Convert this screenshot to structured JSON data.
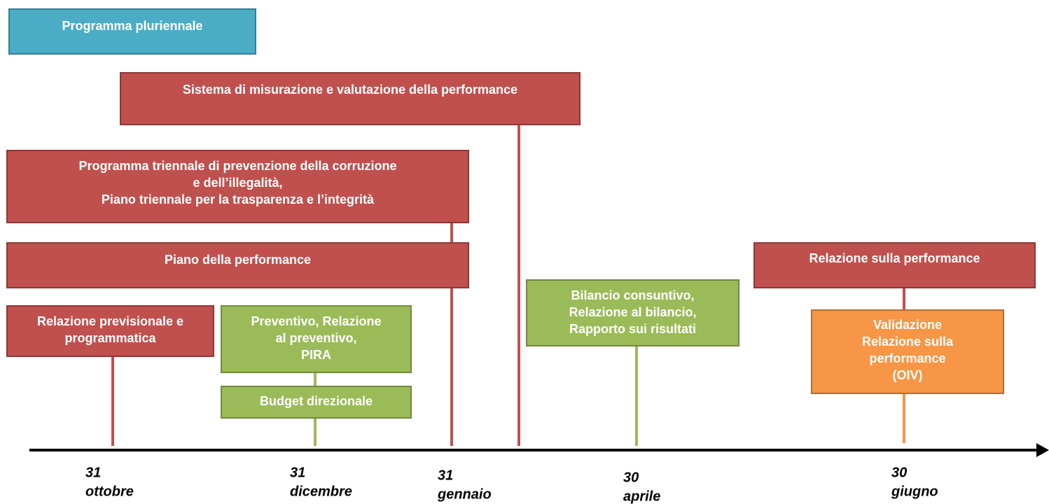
{
  "boxes": [
    {
      "lines": [
        "Programma pluriennale"
      ]
    },
    {
      "lines": [
        "Sistema di misurazione e valutazione della performance"
      ]
    },
    {
      "lines": [
        "Programma triennale di prevenzione della corruzione",
        "e dell’illegalità,",
        "Piano triennale per la trasparenza  e l’integrità"
      ]
    },
    {
      "lines": [
        "Piano della performance"
      ]
    },
    {
      "lines": [
        "Relazione previsionale e",
        "programmatica"
      ]
    },
    {
      "lines": [
        "Preventivo, Relazione",
        "al preventivo,",
        "PIRA"
      ]
    },
    {
      "lines": [
        "Budget direzionale"
      ]
    },
    {
      "lines": [
        "Bilancio consuntivo,",
        "Relazione al bilancio,",
        "Rapporto sui risultati"
      ]
    },
    {
      "lines": [
        "Relazione sulla performance"
      ]
    },
    {
      "lines": [
        "Validazione",
        "Relazione sulla",
        "performance",
        "(OIV)"
      ]
    }
  ],
  "dates": [
    {
      "day": "31",
      "month": "ottobre"
    },
    {
      "day": "31",
      "month": "dicembre"
    },
    {
      "day": "31",
      "month": "gennaio"
    },
    {
      "day": "30",
      "month": "aprile"
    },
    {
      "day": "30",
      "month": "giugno"
    }
  ]
}
